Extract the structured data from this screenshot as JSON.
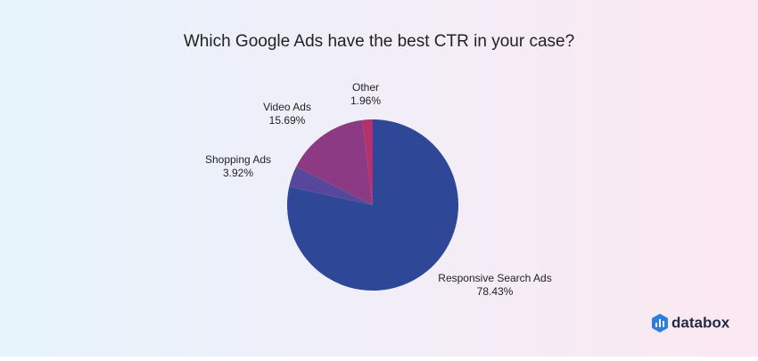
{
  "chart_data": {
    "type": "pie",
    "title": "Which Google Ads have the best CTR in your case?",
    "categories": [
      "Responsive Search Ads",
      "Shopping Ads",
      "Video Ads",
      "Other"
    ],
    "values": [
      78.43,
      3.92,
      15.69,
      1.96
    ],
    "value_labels": [
      "78.43%",
      "3.92%",
      "15.69%",
      "1.96%"
    ],
    "colors": [
      "#2e4797",
      "#56479c",
      "#8c3a84",
      "#b3316c"
    ]
  },
  "brand": "databox"
}
